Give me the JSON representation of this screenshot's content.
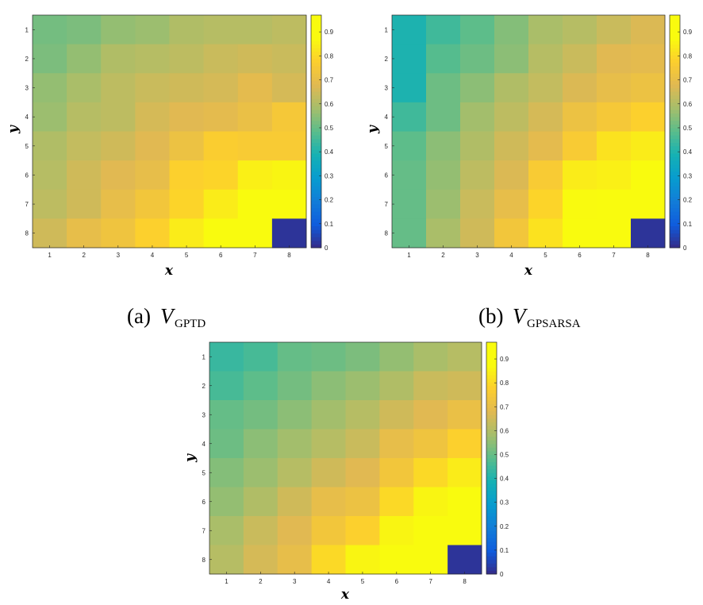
{
  "chart_data": [
    {
      "type": "heatmap",
      "xlabel": "x",
      "ylabel": "y",
      "x_ticks": [
        "1",
        "2",
        "3",
        "4",
        "5",
        "6",
        "7",
        "8"
      ],
      "y_ticks": [
        "1",
        "2",
        "3",
        "4",
        "5",
        "6",
        "7",
        "8"
      ],
      "colorbar_ticks": [
        "0",
        "0.1",
        "0.2",
        "0.3",
        "0.4",
        "0.5",
        "0.6",
        "0.7",
        "0.8",
        "0.9"
      ],
      "clim": [
        0,
        0.97
      ],
      "colormap": "parula",
      "caption": {
        "label": "(a)",
        "var": "V",
        "sub": "GPTD"
      },
      "values": [
        [
          0.52,
          0.53,
          0.56,
          0.57,
          0.6,
          0.61,
          0.61,
          0.62
        ],
        [
          0.53,
          0.56,
          0.6,
          0.61,
          0.62,
          0.64,
          0.65,
          0.64
        ],
        [
          0.56,
          0.59,
          0.62,
          0.64,
          0.65,
          0.66,
          0.69,
          0.66
        ],
        [
          0.57,
          0.61,
          0.62,
          0.66,
          0.68,
          0.69,
          0.71,
          0.75
        ],
        [
          0.6,
          0.63,
          0.65,
          0.68,
          0.72,
          0.77,
          0.76,
          0.76
        ],
        [
          0.61,
          0.65,
          0.68,
          0.7,
          0.78,
          0.79,
          0.85,
          0.86
        ],
        [
          0.62,
          0.65,
          0.7,
          0.74,
          0.79,
          0.84,
          0.9,
          0.97
        ],
        [
          0.65,
          0.7,
          0.73,
          0.78,
          0.84,
          0.88,
          0.97,
          0.02
        ]
      ]
    },
    {
      "type": "heatmap",
      "xlabel": "x",
      "ylabel": "y",
      "x_ticks": [
        "1",
        "2",
        "3",
        "4",
        "5",
        "6",
        "7",
        "8"
      ],
      "y_ticks": [
        "1",
        "2",
        "3",
        "4",
        "5",
        "6",
        "7",
        "8"
      ],
      "colorbar_ticks": [
        "0",
        "0.1",
        "0.2",
        "0.3",
        "0.4",
        "0.5",
        "0.6",
        "0.7",
        "0.8",
        "0.9"
      ],
      "clim": [
        0,
        0.97
      ],
      "colormap": "parula",
      "caption": {
        "label": "(b)",
        "var": "V",
        "sub": "GPSARSA"
      },
      "values": [
        [
          0.4,
          0.45,
          0.49,
          0.54,
          0.59,
          0.61,
          0.64,
          0.67
        ],
        [
          0.4,
          0.48,
          0.51,
          0.55,
          0.61,
          0.64,
          0.68,
          0.69
        ],
        [
          0.4,
          0.51,
          0.55,
          0.6,
          0.63,
          0.67,
          0.7,
          0.72
        ],
        [
          0.45,
          0.51,
          0.58,
          0.62,
          0.66,
          0.72,
          0.75,
          0.78
        ],
        [
          0.49,
          0.55,
          0.6,
          0.65,
          0.69,
          0.76,
          0.82,
          0.84
        ],
        [
          0.5,
          0.56,
          0.62,
          0.67,
          0.76,
          0.84,
          0.85,
          0.88
        ],
        [
          0.5,
          0.57,
          0.64,
          0.7,
          0.79,
          0.87,
          0.9,
          0.95
        ],
        [
          0.5,
          0.59,
          0.65,
          0.74,
          0.82,
          0.91,
          0.97,
          0.02
        ]
      ]
    },
    {
      "type": "heatmap",
      "xlabel": "x",
      "ylabel": "y",
      "x_ticks": [
        "1",
        "2",
        "3",
        "4",
        "5",
        "6",
        "7",
        "8"
      ],
      "y_ticks": [
        "1",
        "2",
        "3",
        "4",
        "5",
        "6",
        "7",
        "8"
      ],
      "colorbar_ticks": [
        "0",
        "0.1",
        "0.2",
        "0.3",
        "0.4",
        "0.5",
        "0.6",
        "0.7",
        "0.8",
        "0.9"
      ],
      "clim": [
        0,
        0.97
      ],
      "colormap": "parula",
      "caption": null,
      "values": [
        [
          0.44,
          0.46,
          0.5,
          0.51,
          0.53,
          0.56,
          0.59,
          0.61
        ],
        [
          0.46,
          0.49,
          0.52,
          0.55,
          0.57,
          0.6,
          0.64,
          0.65
        ],
        [
          0.5,
          0.52,
          0.55,
          0.58,
          0.61,
          0.65,
          0.68,
          0.71
        ],
        [
          0.51,
          0.55,
          0.58,
          0.61,
          0.64,
          0.7,
          0.73,
          0.78
        ],
        [
          0.54,
          0.57,
          0.61,
          0.65,
          0.68,
          0.74,
          0.8,
          0.84
        ],
        [
          0.56,
          0.6,
          0.65,
          0.7,
          0.72,
          0.8,
          0.86,
          0.89
        ],
        [
          0.59,
          0.64,
          0.68,
          0.74,
          0.78,
          0.86,
          0.91,
          0.97
        ],
        [
          0.61,
          0.66,
          0.7,
          0.8,
          0.86,
          0.91,
          0.97,
          0.02
        ]
      ]
    }
  ]
}
